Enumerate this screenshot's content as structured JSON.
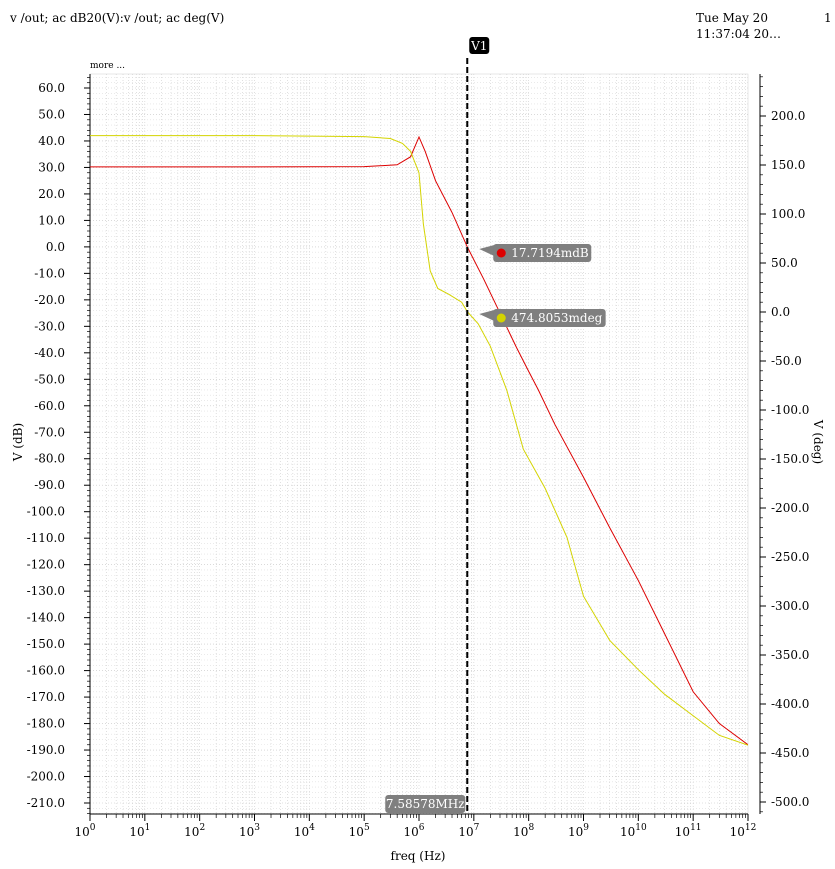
{
  "header": {
    "title": "v /out; ac dB20(V):v /out; ac deg(V)",
    "date": "Tue May 20",
    "time": "11:37:04 20…",
    "page": "1",
    "more": "more ..."
  },
  "chart_data": {
    "type": "line",
    "xlabel": "freq (Hz)",
    "ylabel_left": "V (dB)",
    "ylabel_right": "V (deg)",
    "x_scale": "log",
    "xlim": [
      1,
      1000000000000
    ],
    "ylim_left": [
      -210,
      60
    ],
    "ylim_right": [
      -500,
      200
    ],
    "grid": true,
    "x_ticks": [
      {
        "base": "10",
        "exp": "0"
      },
      {
        "base": "10",
        "exp": "1"
      },
      {
        "base": "10",
        "exp": "2"
      },
      {
        "base": "10",
        "exp": "3"
      },
      {
        "base": "10",
        "exp": "4"
      },
      {
        "base": "10",
        "exp": "5"
      },
      {
        "base": "10",
        "exp": "6"
      },
      {
        "base": "10",
        "exp": "7"
      },
      {
        "base": "10",
        "exp": "8"
      },
      {
        "base": "10",
        "exp": "9"
      },
      {
        "base": "10",
        "exp": "10"
      },
      {
        "base": "10",
        "exp": "11"
      },
      {
        "base": "10",
        "exp": "12"
      }
    ],
    "y_left_ticks": [
      "60.0",
      "50.0",
      "40.0",
      "30.0",
      "20.0",
      "10.0",
      "0.0",
      "-10.0",
      "-20.0",
      "-30.0",
      "-40.0",
      "-50.0",
      "-60.0",
      "-70.0",
      "-80.0",
      "-90.0",
      "-100.0",
      "-110.0",
      "-120.0",
      "-130.0",
      "-140.0",
      "-150.0",
      "-160.0",
      "-170.0",
      "-180.0",
      "-190.0",
      "-200.0",
      "-210.0"
    ],
    "y_right_ticks": [
      "200.0",
      "150.0",
      "100.0",
      "50.0",
      "0.0",
      "-50.0",
      "-100.0",
      "-150.0",
      "-200.0",
      "-250.0",
      "-300.0",
      "-350.0",
      "-400.0",
      "-450.0",
      "-500.0"
    ],
    "series": [
      {
        "axis": "left",
        "color": "#dd0000",
        "points": [
          [
            1,
            30.2
          ],
          [
            10,
            30.2
          ],
          [
            1000,
            30.2
          ],
          [
            100000,
            30.3
          ],
          [
            400000,
            31
          ],
          [
            700000,
            34
          ],
          [
            1000000,
            41.5
          ],
          [
            1300000,
            36
          ],
          [
            2000000,
            25
          ],
          [
            4000000,
            13
          ],
          [
            7585780,
            0.02
          ],
          [
            15000000,
            -12
          ],
          [
            30000000,
            -25
          ],
          [
            60000000,
            -38
          ],
          [
            100000000,
            -47
          ],
          [
            150000000,
            -54
          ],
          [
            300000000,
            -67
          ],
          [
            1000000000,
            -87
          ],
          [
            3000000000,
            -106
          ],
          [
            10000000000,
            -126
          ],
          [
            30000000000,
            -146
          ],
          [
            100000000000,
            -168
          ],
          [
            300000000000,
            -180
          ],
          [
            1000000000000,
            -188
          ]
        ]
      },
      {
        "axis": "right",
        "color": "#d4d400",
        "points": [
          [
            1,
            180
          ],
          [
            10,
            180
          ],
          [
            1000,
            180
          ],
          [
            100000,
            179
          ],
          [
            300000,
            177
          ],
          [
            500000,
            172
          ],
          [
            700000,
            164
          ],
          [
            1000000,
            142
          ],
          [
            1200000,
            90
          ],
          [
            1600000,
            42
          ],
          [
            2200000,
            24
          ],
          [
            3500000,
            18
          ],
          [
            6000000,
            10
          ],
          [
            7585780,
            0.47
          ],
          [
            12000000,
            -12
          ],
          [
            20000000,
            -35
          ],
          [
            40000000,
            -80
          ],
          [
            80000000,
            -140
          ],
          [
            200000000,
            -180
          ],
          [
            500000000,
            -230
          ],
          [
            1000000000,
            -290
          ],
          [
            3000000000,
            -335
          ],
          [
            10000000000,
            -365
          ],
          [
            30000000000,
            -390
          ],
          [
            100000000000,
            -412
          ],
          [
            300000000000,
            -432
          ],
          [
            1000000000000,
            -442
          ]
        ]
      }
    ],
    "cursor": {
      "label": "V1",
      "x": 7585780,
      "x_text": "7.58578MHz",
      "markers": [
        {
          "text": "17.7194mdB",
          "color": "#dd0000",
          "series": 0
        },
        {
          "text": "474.8053mdeg",
          "color": "#d4d400",
          "series": 1
        }
      ]
    }
  }
}
